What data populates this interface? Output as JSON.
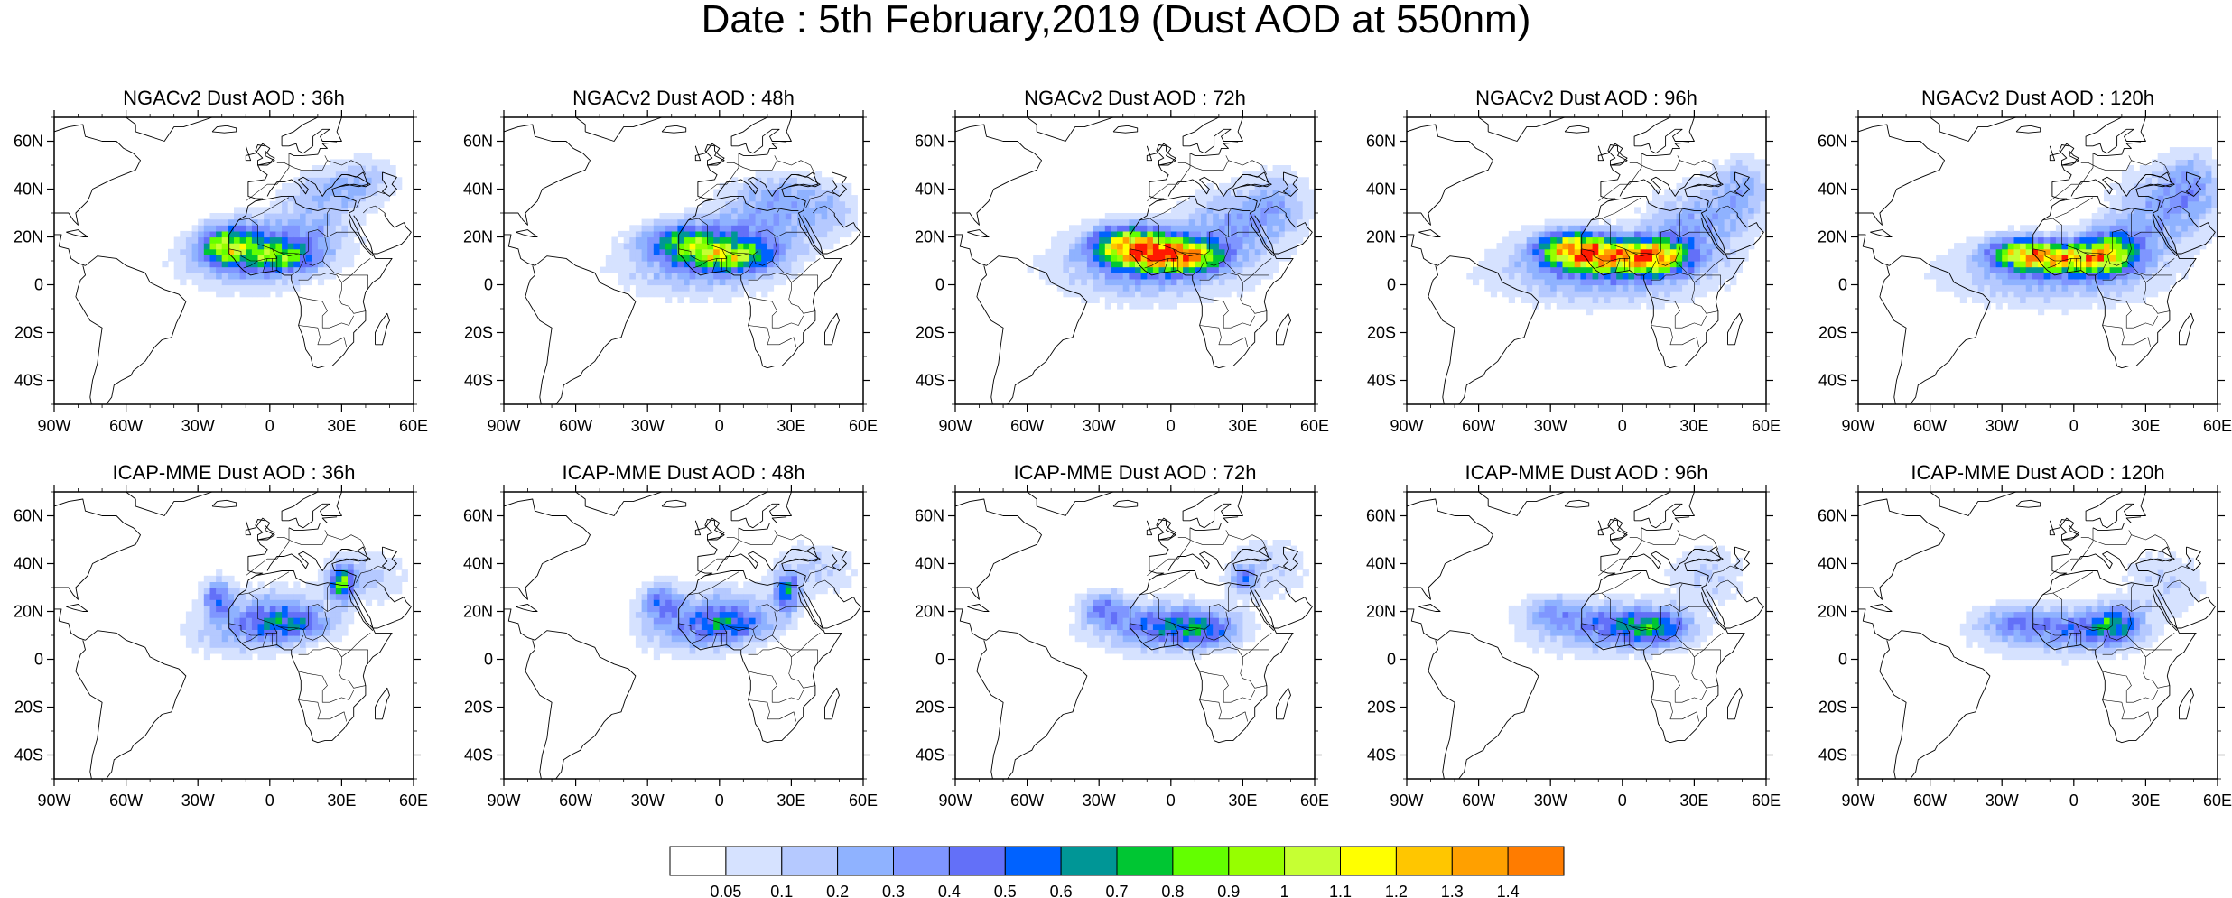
{
  "title": "Date : 5th February,2019 (Dust AOD at 550nm)",
  "rows": [
    {
      "model": "NGACv2",
      "panels": [
        {
          "title": "NGACv2 Dust AOD : 36h",
          "forecast_hour": 36
        },
        {
          "title": "NGACv2 Dust AOD : 48h",
          "forecast_hour": 48
        },
        {
          "title": "NGACv2 Dust AOD : 72h",
          "forecast_hour": 72
        },
        {
          "title": "NGACv2 Dust AOD : 96h",
          "forecast_hour": 96
        },
        {
          "title": "NGACv2 Dust AOD : 120h",
          "forecast_hour": 120
        }
      ]
    },
    {
      "model": "ICAP-MME",
      "panels": [
        {
          "title": "ICAP-MME Dust AOD : 36h",
          "forecast_hour": 36
        },
        {
          "title": "ICAP-MME Dust AOD : 48h",
          "forecast_hour": 48
        },
        {
          "title": "ICAP-MME Dust AOD : 72h",
          "forecast_hour": 72
        },
        {
          "title": "ICAP-MME Dust AOD : 96h",
          "forecast_hour": 96
        },
        {
          "title": "ICAP-MME Dust AOD : 120h",
          "forecast_hour": 120
        }
      ]
    }
  ],
  "map": {
    "lon_range": [
      -90,
      60
    ],
    "lat_range": [
      -50,
      70
    ],
    "lon_ticks": [
      {
        "value": -90,
        "label": "90W"
      },
      {
        "value": -60,
        "label": "60W"
      },
      {
        "value": -30,
        "label": "30W"
      },
      {
        "value": 0,
        "label": "0"
      },
      {
        "value": 30,
        "label": "30E"
      },
      {
        "value": 60,
        "label": "60E"
      }
    ],
    "lat_ticks": [
      {
        "value": 60,
        "label": "60N"
      },
      {
        "value": 40,
        "label": "40N"
      },
      {
        "value": 20,
        "label": "20N"
      },
      {
        "value": 0,
        "label": "0"
      },
      {
        "value": -20,
        "label": "20S"
      },
      {
        "value": -40,
        "label": "40S"
      }
    ]
  },
  "colorbar": {
    "levels": [
      "0.05",
      "0.1",
      "0.2",
      "0.3",
      "0.4",
      "0.5",
      "0.6",
      "0.7",
      "0.8",
      "0.9",
      "1",
      "1.1",
      "1.2",
      "1.3",
      "1.4"
    ],
    "colors": [
      "#ffffff",
      "#d6e2ff",
      "#b5c9ff",
      "#8fb2ff",
      "#7f96ff",
      "#6370f8",
      "#0062ff",
      "#009696",
      "#00c633",
      "#63ff00",
      "#96ff00",
      "#c6ff33",
      "#ffff00",
      "#ffc600",
      "#ffa000",
      "#ff7c00",
      "#ff1900"
    ]
  }
}
